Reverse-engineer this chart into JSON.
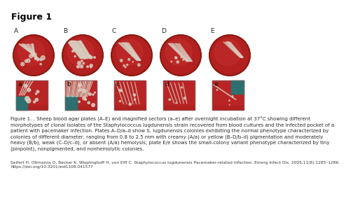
{
  "title": "Figure 1",
  "title_fontsize": 9,
  "title_fontweight": "bold",
  "background_color": "#ffffff",
  "plate_labels": [
    "A",
    "B",
    "C",
    "D",
    "E"
  ],
  "sector_labels": [
    "a",
    "b",
    "c",
    "d",
    "e"
  ],
  "label_fontsize": 6.5,
  "plate_color_dark": "#8B1A10",
  "plate_color_mid": "#B22020",
  "plate_color_light": "#C83030",
  "plate_color_highlight": "#D44040",
  "streak_color_white": "#D8CFC0",
  "streak_color_light": "#C8BFB0",
  "sector_teal": "#2E7070",
  "caption_text": "Figure 1. . Sheep blood agar plates (A–E) and magnified sectors (a–e) after overnight incubation at 37°C showing different\nmorphotypes of clonal isolates of the Staphylococcus lugdunensis strain recovered from blood cultures and the infected pocket of a\npatient with pacemaker infection. Plates A–D/a–d show S. lugdunensis colonies exhibiting the normal phenotype characterized by\ncolonies of different diameter, ranging from 0.8 to 2.5 mm with creamy (A/a) or yellow (B–D/b–d) pigmentation and moderately\nheavy (B/b), weak (C–D/c–d), or absent (A/a) hemolysis; plate E/e shows the small-colony variant phenotype characterized by tiny\n(pinpoint), nonpigmented, and nonhemolytic colonies.",
  "caption_fontsize": 5.0,
  "citation_text": "Seifert H, Oltmanns D, Becker K, Wisplinghoff H, von Eiff C. Staphylococcus lugdunensis Pacemaker-related Infection. Emerg Infect Dis. 2005;11(8):1285–1286.\nhttps://doi.org/10.3201/eid1108.041577",
  "citation_fontsize": 4.2
}
